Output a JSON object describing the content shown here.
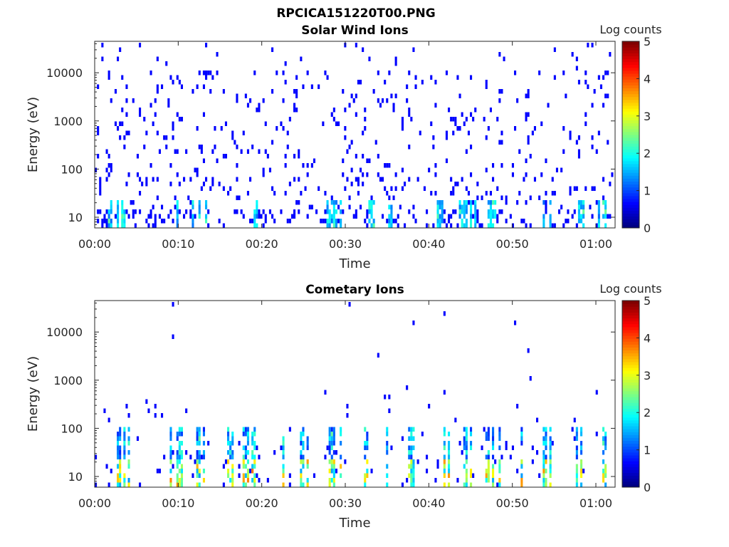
{
  "figure": {
    "title_line1": "RPCICA151220T00.PNG"
  },
  "colors": {
    "axis": "#262626",
    "colormap": "jet"
  },
  "chart_data": [
    {
      "type": "heatmap",
      "title": "Solar Wind Ions",
      "xlabel": "Time",
      "ylabel": "Energy (eV)",
      "xticks": [
        "00:00",
        "00:10",
        "00:20",
        "00:30",
        "00:40",
        "00:50",
        "01:00"
      ],
      "yticks": [
        "10",
        "100",
        "1000",
        "10000"
      ],
      "ylim": [
        6,
        45000
      ],
      "yscale": "log",
      "colorbar": {
        "label": "Log counts",
        "ticks": [
          "0",
          "1",
          "2",
          "3",
          "4",
          "5"
        ],
        "range": [
          0,
          5
        ]
      },
      "hot_columns": [
        "00:02",
        "00:03",
        "00:09",
        "00:10",
        "00:12",
        "00:13",
        "00:19",
        "00:28",
        "00:29",
        "00:33",
        "00:35",
        "00:41",
        "00:44",
        "00:45",
        "00:47",
        "00:48",
        "00:51",
        "00:54",
        "00:58",
        "01:00",
        "01:01"
      ]
    },
    {
      "type": "heatmap",
      "title": "Cometary Ions",
      "xlabel": "Time",
      "ylabel": "Energy (eV)",
      "xticks": [
        "00:00",
        "00:10",
        "00:20",
        "00:30",
        "00:40",
        "00:50",
        "01:00"
      ],
      "yticks": [
        "10",
        "100",
        "1000",
        "10000"
      ],
      "ylim": [
        6,
        45000
      ],
      "yscale": "log",
      "colorbar": {
        "label": "Log counts",
        "ticks": [
          "0",
          "1",
          "2",
          "3",
          "4",
          "5"
        ],
        "range": [
          0,
          5
        ]
      },
      "hot_columns": [
        "00:03",
        "00:04",
        "00:09",
        "00:10",
        "00:12",
        "00:13",
        "00:16",
        "00:18",
        "00:19",
        "00:22",
        "00:25",
        "00:28",
        "00:29",
        "00:32",
        "00:35",
        "00:38",
        "00:42",
        "00:44",
        "00:45",
        "00:47",
        "00:48",
        "00:51",
        "00:54",
        "00:58",
        "01:01"
      ]
    }
  ]
}
